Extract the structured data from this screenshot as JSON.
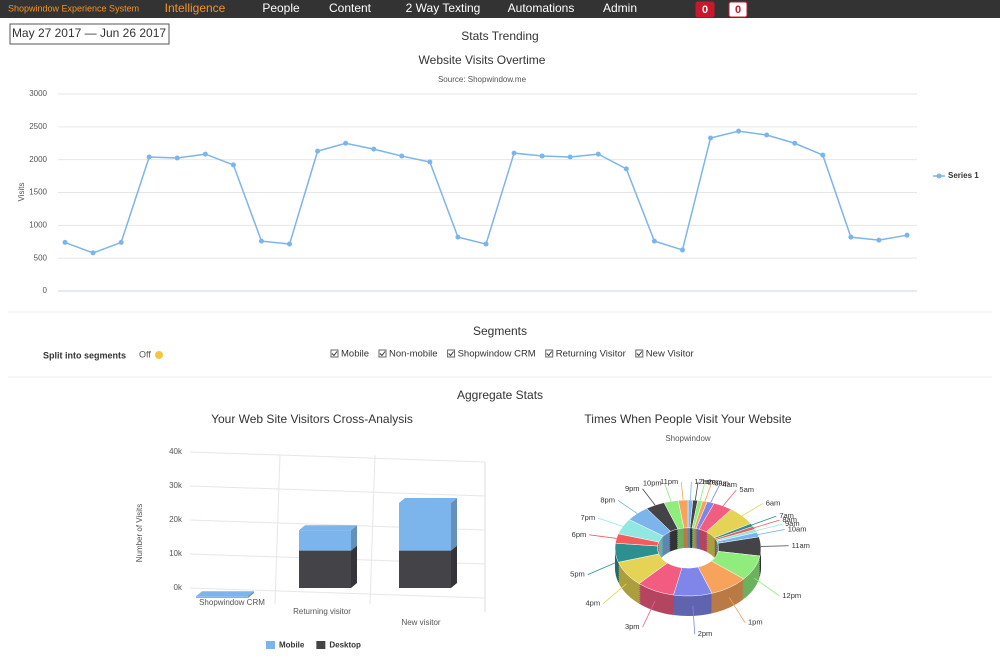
{
  "nav": {
    "brand": "Shopwindow Experience System",
    "items": [
      "Intelligence",
      "People",
      "Content",
      "2 Way Texting",
      "Automations",
      "Admin"
    ],
    "badges": [
      0,
      0
    ]
  },
  "date_range": "May 27 2017 — Jun 26 2017",
  "stats_title": "Stats Trending",
  "segments": {
    "title": "Segments",
    "split_label": "Split into segments",
    "split_state": "Off",
    "options": [
      "Mobile",
      "Non-mobile",
      "Shopwindow CRM",
      "Returning Visitor",
      "New Visitor"
    ]
  },
  "aggregate_title": "Aggregate Stats",
  "chart_data": [
    {
      "type": "line",
      "title": "Website Visits Overtime",
      "subtitle": "Source: Shopwindow.me",
      "y_label": "Visits",
      "ylim": [
        0,
        3000
      ],
      "yticks": [
        0,
        500,
        1000,
        1500,
        2000,
        2500,
        3000
      ],
      "grid": true,
      "legend": "right",
      "series": [
        {
          "name": "Series 1",
          "color": "#7cb5ec",
          "values": [
            740,
            580,
            740,
            2040,
            2025,
            2085,
            1920,
            760,
            715,
            2130,
            2250,
            2160,
            2055,
            1965,
            820,
            715,
            2100,
            2055,
            2040,
            2085,
            1860,
            760,
            625,
            2330,
            2435,
            2375,
            2250,
            2070,
            820,
            775,
            850
          ]
        }
      ]
    },
    {
      "type": "bar3d",
      "title": "Your Web Site Visitors Cross-Analysis",
      "y_label": "Number of Visits",
      "categories": [
        "Shopwindow CRM",
        "Returning visitor",
        "New visitor"
      ],
      "stacked": true,
      "ylim": [
        0,
        40000
      ],
      "yticks": [
        {
          "value": 0,
          "label": "0k"
        },
        {
          "value": 10000,
          "label": "10k"
        },
        {
          "value": 20000,
          "label": "20k"
        },
        {
          "value": 30000,
          "label": "30k"
        },
        {
          "value": 40000,
          "label": "40k"
        }
      ],
      "legend": "bottom",
      "series": [
        {
          "name": "Mobile",
          "color": "#7cb5ec",
          "values": [
            500,
            6000,
            14000
          ]
        },
        {
          "name": "Desktop",
          "color": "#434348",
          "values": [
            0,
            11000,
            11000
          ]
        }
      ]
    },
    {
      "type": "donut3d",
      "title": "Times When People Visit Your Website",
      "subtitle": "Shopwindow",
      "categories": [
        "12am",
        "1am",
        "2am",
        "3am",
        "4am",
        "5am",
        "6am",
        "7am",
        "8am",
        "9am",
        "10am",
        "11am",
        "12pm",
        "1pm",
        "2pm",
        "3pm",
        "4pm",
        "5pm",
        "6pm",
        "7pm",
        "8pm",
        "9pm",
        "10pm",
        "11pm"
      ],
      "values": [
        1,
        1,
        1,
        1,
        1.5,
        4,
        6,
        1,
        1,
        1,
        1.5,
        6,
        8,
        8,
        8,
        8,
        8,
        6,
        3,
        5,
        5,
        4,
        3,
        2
      ],
      "colors": [
        "#7cb5ec",
        "#434348",
        "#90ed7d",
        "#f7a35c",
        "#8085e9",
        "#f15c80",
        "#e4d354",
        "#2b908f",
        "#f45b5b",
        "#91e8e1"
      ]
    }
  ]
}
